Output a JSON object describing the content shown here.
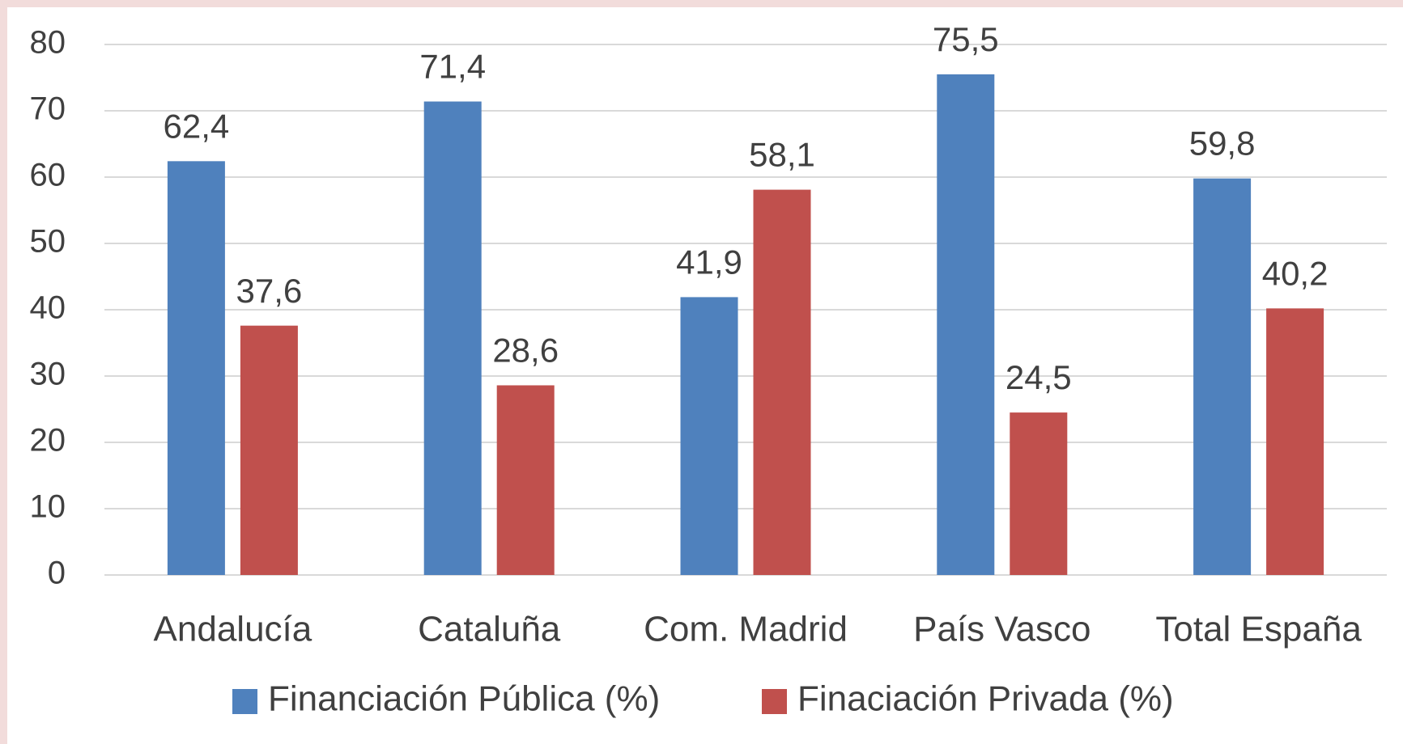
{
  "chart_data": {
    "type": "bar",
    "categories": [
      "Andalucía",
      "Cataluña",
      "Com. Madrid",
      "País Vasco",
      "Total España"
    ],
    "series": [
      {
        "name": "Financiación Pública (%)",
        "color": "#4f81bd",
        "values": [
          62.4,
          71.4,
          41.9,
          75.5,
          59.8
        ],
        "value_labels": [
          "62,4",
          "71,4",
          "41,9",
          "75,5",
          "59,8"
        ]
      },
      {
        "name": "Finaciación Privada (%)",
        "color": "#c0504d",
        "values": [
          37.6,
          28.6,
          58.1,
          24.5,
          40.2
        ],
        "value_labels": [
          "37,6",
          "28,6",
          "58,1",
          "24,5",
          "40,2"
        ]
      }
    ],
    "ylim": [
      0,
      80
    ],
    "yticks": [
      0,
      10,
      20,
      30,
      40,
      50,
      60,
      70,
      80
    ],
    "grid": true,
    "legend": "bottom"
  }
}
